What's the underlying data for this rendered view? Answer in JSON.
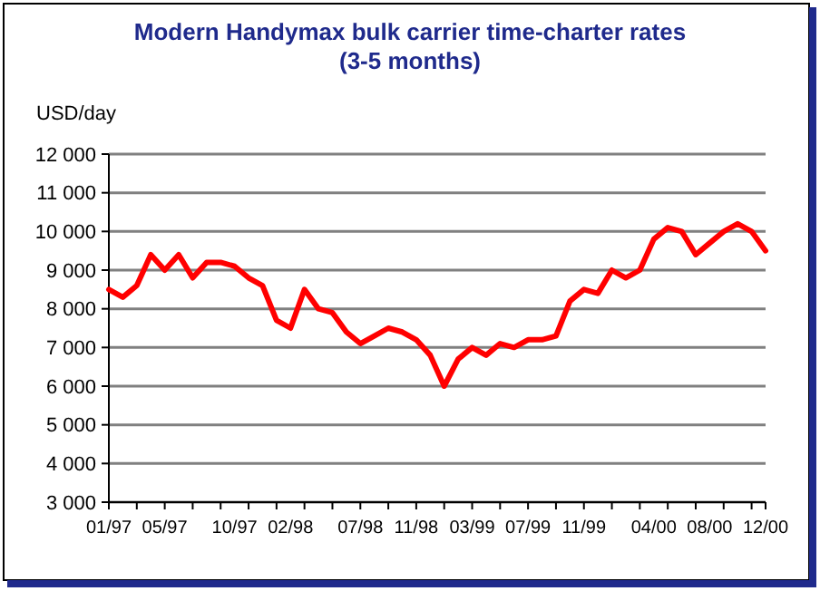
{
  "chart_data": {
    "type": "line",
    "title": "Modern Handymax bulk carrier time-charter rates (3-5 months)",
    "ylabel": "USD/day",
    "categories": [
      "01/97",
      null,
      null,
      null,
      "05/97",
      null,
      null,
      null,
      null,
      "10/97",
      null,
      null,
      null,
      "02/98",
      null,
      null,
      null,
      null,
      "07/98",
      null,
      null,
      null,
      "11/98",
      null,
      null,
      null,
      "03/99",
      null,
      null,
      null,
      "07/99",
      null,
      null,
      null,
      "11/99",
      null,
      null,
      null,
      null,
      "04/00",
      null,
      null,
      null,
      "08/00",
      null,
      null,
      null,
      "12/00"
    ],
    "series": [
      {
        "color": "#ff0000",
        "values": [
          8500,
          8300,
          8600,
          9400,
          9000,
          9400,
          8800,
          9200,
          9200,
          9100,
          8800,
          8600,
          7700,
          7500,
          8500,
          8000,
          7900,
          7400,
          7100,
          7300,
          7500,
          7400,
          7200,
          6800,
          6000,
          6700,
          7000,
          6800,
          7100,
          7000,
          7200,
          7200,
          7300,
          8200,
          8500,
          8400,
          9000,
          8800,
          9000,
          9800,
          10100,
          10000,
          9400,
          9700,
          10000,
          10200,
          10000,
          9500
        ]
      }
    ],
    "ylim": [
      3000,
      12000
    ],
    "yticks": [
      {
        "value": 3000,
        "label": "3 000"
      },
      {
        "value": 4000,
        "label": "4 000"
      },
      {
        "value": 5000,
        "label": "5 000"
      },
      {
        "value": 6000,
        "label": "6 000"
      },
      {
        "value": 7000,
        "label": "7 000"
      },
      {
        "value": 8000,
        "label": "8 000"
      },
      {
        "value": 9000,
        "label": "9 000"
      },
      {
        "value": 10000,
        "label": "10 000"
      },
      {
        "value": 11000,
        "label": "11 000"
      },
      {
        "value": 12000,
        "label": "12 000"
      }
    ],
    "grid": "y",
    "marker": "none",
    "line_style": "solid"
  }
}
